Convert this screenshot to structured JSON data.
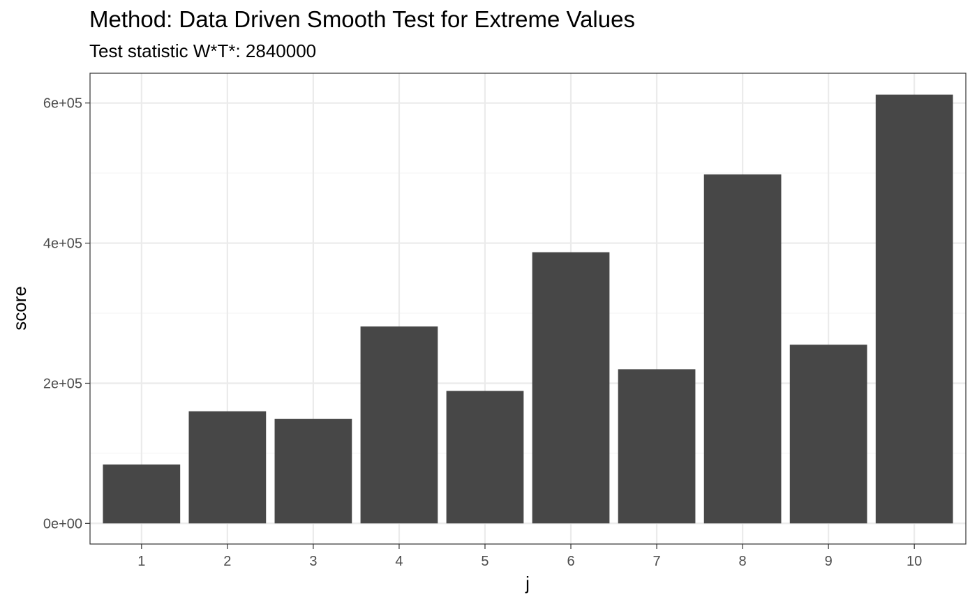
{
  "chart_data": {
    "type": "bar",
    "title": "Method: Data Driven Smooth Test for Extreme Values",
    "subtitle": "Test statistic W*T*: 2840000",
    "xlabel": "j",
    "ylabel": "score",
    "categories": [
      "1",
      "2",
      "3",
      "4",
      "5",
      "6",
      "7",
      "8",
      "9",
      "10"
    ],
    "values": [
      84000,
      160000,
      149000,
      281000,
      189000,
      387000,
      220000,
      498000,
      255000,
      612000
    ],
    "ylim": [
      -29500,
      642500
    ],
    "yticks": [
      0,
      200000,
      400000,
      600000
    ],
    "ytick_labels": [
      "0e+00",
      "2e+05",
      "4e+05",
      "6e+05"
    ],
    "y_minor_breaks": [
      100000,
      300000,
      500000
    ],
    "grid": true,
    "legend": "none",
    "colors": {
      "bar": "#474747",
      "panel_border": "#333333",
      "grid_major": "#ebebeb",
      "grid_minor": "#f5f5f5",
      "background": "#ffffff"
    }
  }
}
